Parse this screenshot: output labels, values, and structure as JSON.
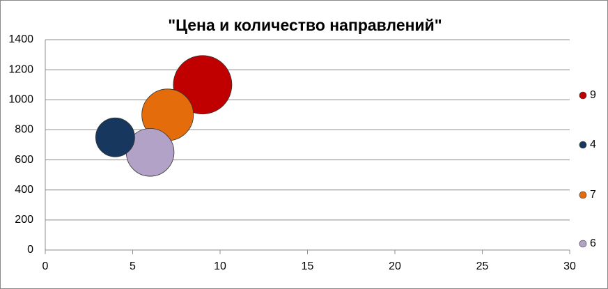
{
  "chart_data": {
    "type": "bubble",
    "title": "\"Цена и количество направлений\"",
    "series": [
      {
        "name": "9",
        "color": "#c00000",
        "x": [
          9
        ],
        "values": [
          1100
        ],
        "sizes": [
          9
        ]
      },
      {
        "name": "4",
        "color": "#17375e",
        "x": [
          4
        ],
        "values": [
          750
        ],
        "sizes": [
          4
        ]
      },
      {
        "name": "7",
        "color": "#e46c0a",
        "x": [
          7
        ],
        "values": [
          900
        ],
        "sizes": [
          7
        ]
      },
      {
        "name": "6",
        "color": "#b3a2c7",
        "x": [
          6
        ],
        "values": [
          650
        ],
        "sizes": [
          6
        ]
      }
    ],
    "xlim": [
      0,
      30
    ],
    "xticks": [
      0,
      5,
      10,
      15,
      20,
      25,
      30
    ],
    "ylim": [
      0,
      1400
    ],
    "yticks": [
      0,
      200,
      400,
      600,
      800,
      1000,
      1200,
      1400
    ],
    "grid": true,
    "legend": "right"
  }
}
